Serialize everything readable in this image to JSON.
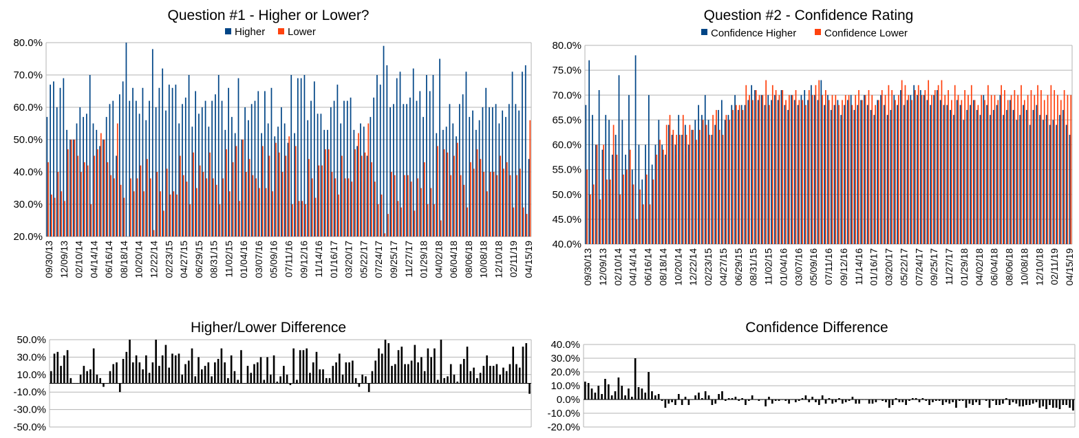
{
  "palette": {
    "higher": "#004586",
    "lower": "#ff420e",
    "difference": "#000000",
    "grid": "#b3b3b3"
  },
  "chart_data": [
    {
      "type": "bar",
      "title": "Question #1 - Higher or Lower?",
      "series_names": [
        "Higher",
        "Lower"
      ],
      "ylim": [
        20,
        80
      ],
      "yticks": [
        "20.0%",
        "30.0%",
        "40.0%",
        "50.0%",
        "60.0%",
        "70.0%",
        "80.0%"
      ],
      "xtick_labels": [
        "09/30/13",
        "12/09/13",
        "02/10/14",
        "04/14/14",
        "06/16/14",
        "08/18/14",
        "10/20/14",
        "12/22/14",
        "02/23/15",
        "04/27/15",
        "06/29/15",
        "08/31/15",
        "11/02/15",
        "01/04/16",
        "03/07/16",
        "05/09/16",
        "07/11/16",
        "09/12/16",
        "11/14/16",
        "01/16/17",
        "03/20/17",
        "05/22/17",
        "07/24/17",
        "09/25/17",
        "11/27/17",
        "01/29/18",
        "04/02/18",
        "06/04/18",
        "08/06/18",
        "10/08/18",
        "12/10/18",
        "02/11/19",
        "04/15/19"
      ],
      "legend": "top-center",
      "grid": true,
      "series": [
        {
          "name": "Higher",
          "values": [
            57,
            67,
            68,
            60,
            66,
            69,
            53,
            50,
            50,
            55,
            60,
            57,
            58,
            70,
            55,
            53,
            48,
            50,
            57,
            61,
            62,
            45,
            64,
            68,
            80,
            62,
            66,
            62,
            58,
            66,
            56,
            62,
            78,
            60,
            66,
            72,
            59,
            67,
            66,
            67,
            55,
            61,
            63,
            70,
            54,
            65,
            58,
            60,
            62,
            54,
            62,
            64,
            70,
            62,
            53,
            66,
            57,
            52,
            69,
            50,
            60,
            56,
            61,
            62,
            65,
            52,
            65,
            55,
            66,
            51,
            54,
            60,
            55,
            49,
            70,
            52,
            69,
            69,
            70,
            56,
            62,
            68,
            58,
            58,
            53,
            53,
            60,
            62,
            67,
            55,
            62,
            62,
            63,
            53,
            48,
            55,
            54,
            45,
            57,
            63,
            70,
            67,
            79,
            73,
            60,
            61,
            69,
            71,
            61,
            61,
            63,
            72,
            62,
            65,
            57,
            70,
            65,
            70,
            52,
            75,
            53,
            54,
            61,
            55,
            51,
            61,
            64,
            71,
            57,
            59,
            53,
            56,
            60,
            66,
            60,
            60,
            61,
            55,
            59,
            57,
            61,
            71,
            61,
            59,
            71,
            73,
            44
          ]
        },
        {
          "name": "Lower",
          "values": [
            43,
            33,
            32,
            40,
            34,
            31,
            47,
            50,
            50,
            45,
            40,
            43,
            42,
            30,
            45,
            47,
            52,
            50,
            43,
            39,
            38,
            55,
            36,
            32,
            20,
            38,
            34,
            38,
            42,
            34,
            44,
            38,
            22,
            40,
            34,
            28,
            41,
            33,
            34,
            33,
            45,
            39,
            37,
            30,
            46,
            35,
            42,
            40,
            38,
            46,
            38,
            36,
            30,
            38,
            47,
            34,
            43,
            48,
            31,
            50,
            40,
            44,
            39,
            38,
            35,
            48,
            35,
            45,
            34,
            49,
            46,
            40,
            45,
            51,
            30,
            48,
            31,
            31,
            30,
            44,
            38,
            32,
            42,
            42,
            47,
            47,
            40,
            38,
            33,
            45,
            38,
            38,
            37,
            47,
            52,
            45,
            46,
            55,
            43,
            37,
            30,
            33,
            21,
            27,
            40,
            39,
            31,
            29,
            39,
            39,
            37,
            28,
            38,
            35,
            43,
            30,
            35,
            30,
            48,
            25,
            47,
            46,
            39,
            45,
            49,
            39,
            36,
            29,
            43,
            41,
            47,
            44,
            40,
            34,
            40,
            40,
            39,
            45,
            41,
            43,
            39,
            29,
            39,
            41,
            29,
            27,
            56
          ]
        }
      ]
    },
    {
      "type": "bar",
      "title": "Question #2 - Confidence Rating",
      "series_names": [
        "Confidence Higher",
        "Confidence Lower"
      ],
      "ylim": [
        40,
        80
      ],
      "yticks": [
        "40.0%",
        "45.0%",
        "50.0%",
        "55.0%",
        "60.0%",
        "65.0%",
        "70.0%",
        "75.0%",
        "80.0%"
      ],
      "xtick_labels": [
        "09/30/13",
        "12/09/13",
        "02/10/14",
        "04/14/14",
        "06/16/14",
        "08/18/14",
        "10/20/14",
        "12/22/14",
        "02/23/15",
        "04/27/15",
        "06/29/15",
        "08/31/15",
        "11/02/15",
        "01/04/16",
        "03/07/16",
        "05/09/16",
        "07/11/16",
        "09/12/16",
        "11/14/16",
        "01/16/17",
        "03/20/17",
        "05/22/17",
        "07/24/17",
        "09/25/17",
        "11/27/17",
        "01/29/18",
        "04/02/18",
        "06/04/18",
        "08/06/18",
        "10/08/18",
        "12/10/18",
        "02/11/19",
        "04/15/19"
      ],
      "legend": "top-center",
      "grid": true,
      "series": [
        {
          "name": "Confidence Higher",
          "values": [
            68,
            77,
            66,
            60,
            71,
            59,
            66,
            65,
            58,
            62,
            74,
            65,
            58,
            70,
            55,
            78,
            60,
            53,
            60,
            70,
            56,
            60,
            65,
            60,
            58,
            64,
            62,
            60,
            66,
            62,
            64,
            60,
            63,
            65,
            68,
            66,
            70,
            65,
            62,
            64,
            67,
            69,
            65,
            66,
            68,
            70,
            67,
            68,
            68,
            69,
            72,
            71,
            69,
            70,
            68,
            70,
            69,
            70,
            69,
            71,
            68,
            67,
            70,
            69,
            68,
            70,
            71,
            69,
            72,
            70,
            69,
            73,
            68,
            70,
            67,
            68,
            69,
            66,
            68,
            69,
            70,
            67,
            68,
            69,
            70,
            68,
            67,
            66,
            69,
            70,
            68,
            66,
            67,
            70,
            68,
            71,
            68,
            69,
            70,
            72,
            70,
            71,
            70,
            69,
            68,
            70,
            71,
            69,
            68,
            68,
            67,
            66,
            69,
            68,
            65,
            67,
            68,
            69,
            67,
            66,
            70,
            68,
            66,
            67,
            68,
            70,
            66,
            67,
            69,
            67,
            65,
            66,
            68,
            67,
            64,
            67,
            68,
            66,
            65,
            66,
            64,
            65,
            64,
            66,
            67,
            64,
            62
          ]
        },
        {
          "name": "Confidence Lower",
          "values": [
            55,
            50,
            52,
            60,
            49,
            60,
            53,
            53,
            64,
            58,
            50,
            54,
            55,
            59,
            52,
            45,
            51,
            48,
            54,
            48,
            53,
            58,
            61,
            59,
            64,
            66,
            63,
            62,
            62,
            66,
            62,
            64,
            63,
            61,
            63,
            65,
            64,
            62,
            66,
            67,
            63,
            62,
            66,
            65,
            67,
            68,
            68,
            67,
            72,
            70,
            69,
            71,
            70,
            70,
            73,
            68,
            72,
            71,
            70,
            71,
            69,
            70,
            70,
            71,
            69,
            69,
            68,
            71,
            70,
            72,
            73,
            70,
            71,
            69,
            70,
            70,
            68,
            69,
            70,
            70,
            68,
            70,
            71,
            69,
            70,
            71,
            70,
            68,
            69,
            71,
            70,
            72,
            71,
            69,
            70,
            73,
            72,
            70,
            69,
            71,
            72,
            70,
            71,
            73,
            70,
            71,
            72,
            73,
            70,
            71,
            69,
            72,
            70,
            69,
            71,
            70,
            72,
            69,
            68,
            70,
            69,
            72,
            70,
            70,
            69,
            72,
            71,
            69,
            70,
            71,
            70,
            72,
            69,
            70,
            71,
            70,
            72,
            71,
            69,
            70,
            72,
            71,
            70,
            69,
            71,
            70,
            70
          ]
        }
      ]
    },
    {
      "type": "bar",
      "title": "Higher/Lower Difference",
      "ylim": [
        -50,
        50
      ],
      "yticks": [
        "-50.0%",
        "-30.0%",
        "-10.0%",
        "10.0%",
        "30.0%",
        "50.0%"
      ],
      "legend": "none",
      "grid": true,
      "series": [
        {
          "values": [
            14,
            34,
            36,
            20,
            32,
            38,
            6,
            0,
            0,
            10,
            20,
            14,
            16,
            40,
            10,
            6,
            -4,
            0,
            14,
            22,
            24,
            -10,
            28,
            36,
            60,
            24,
            32,
            24,
            16,
            32,
            12,
            24,
            56,
            20,
            32,
            44,
            18,
            34,
            32,
            34,
            10,
            22,
            26,
            40,
            8,
            30,
            16,
            20,
            24,
            8,
            24,
            28,
            40,
            24,
            6,
            32,
            14,
            4,
            38,
            0,
            20,
            12,
            22,
            24,
            30,
            4,
            30,
            10,
            32,
            2,
            8,
            20,
            10,
            -2,
            40,
            4,
            38,
            38,
            40,
            12,
            24,
            36,
            16,
            16,
            6,
            6,
            20,
            24,
            34,
            10,
            24,
            24,
            26,
            6,
            -4,
            10,
            8,
            -10,
            14,
            26,
            40,
            34,
            58,
            46,
            20,
            22,
            38,
            42,
            22,
            22,
            26,
            44,
            24,
            30,
            14,
            40,
            30,
            40,
            4,
            50,
            6,
            8,
            22,
            10,
            2,
            22,
            28,
            42,
            14,
            18,
            6,
            12,
            20,
            32,
            20,
            20,
            22,
            10,
            18,
            14,
            22,
            42,
            22,
            18,
            42,
            46,
            -12
          ]
        }
      ]
    },
    {
      "type": "bar",
      "title": "Confidence Difference",
      "ylim": [
        -20,
        40
      ],
      "yticks": [
        "-20.0%",
        "-10.0%",
        "0.0%",
        "10.0%",
        "20.0%",
        "30.0%",
        "40.0%"
      ],
      "legend": "none",
      "grid": true,
      "series": [
        {
          "values": [
            13,
            12,
            8,
            5,
            10,
            4,
            15,
            11,
            3,
            6,
            16,
            10,
            3,
            8,
            2,
            30,
            9,
            8,
            5,
            20,
            6,
            3,
            4,
            -1,
            -6,
            -3,
            -2,
            -4,
            4,
            -4,
            2,
            -4,
            0,
            3,
            5,
            1,
            6,
            3,
            -4,
            -3,
            4,
            6,
            -1,
            1,
            1,
            2,
            -1,
            1,
            -4,
            -1,
            3,
            0,
            -1,
            0,
            -5,
            2,
            -3,
            -1,
            -1,
            0,
            -1,
            -3,
            0,
            -2,
            -1,
            1,
            3,
            -2,
            2,
            -2,
            -4,
            3,
            -3,
            1,
            -3,
            -2,
            1,
            -3,
            -2,
            -1,
            2,
            -3,
            -3,
            0,
            0,
            -3,
            -3,
            -2,
            0,
            -1,
            -2,
            -6,
            -4,
            1,
            -2,
            -2,
            -4,
            -1,
            1,
            1,
            -2,
            1,
            -1,
            -4,
            -2,
            -1,
            -1,
            -4,
            -2,
            -3,
            -2,
            -6,
            -1,
            -1,
            -6,
            -3,
            -4,
            -2,
            -4,
            0,
            -1,
            -6,
            -1,
            -4,
            -4,
            -3,
            1,
            -4,
            -2,
            -3,
            -5,
            -5,
            -4,
            -4,
            -3,
            -2,
            -6,
            -5,
            -7,
            -4,
            -6,
            -6,
            -7,
            -4,
            -4,
            -6,
            -8
          ]
        }
      ]
    }
  ]
}
